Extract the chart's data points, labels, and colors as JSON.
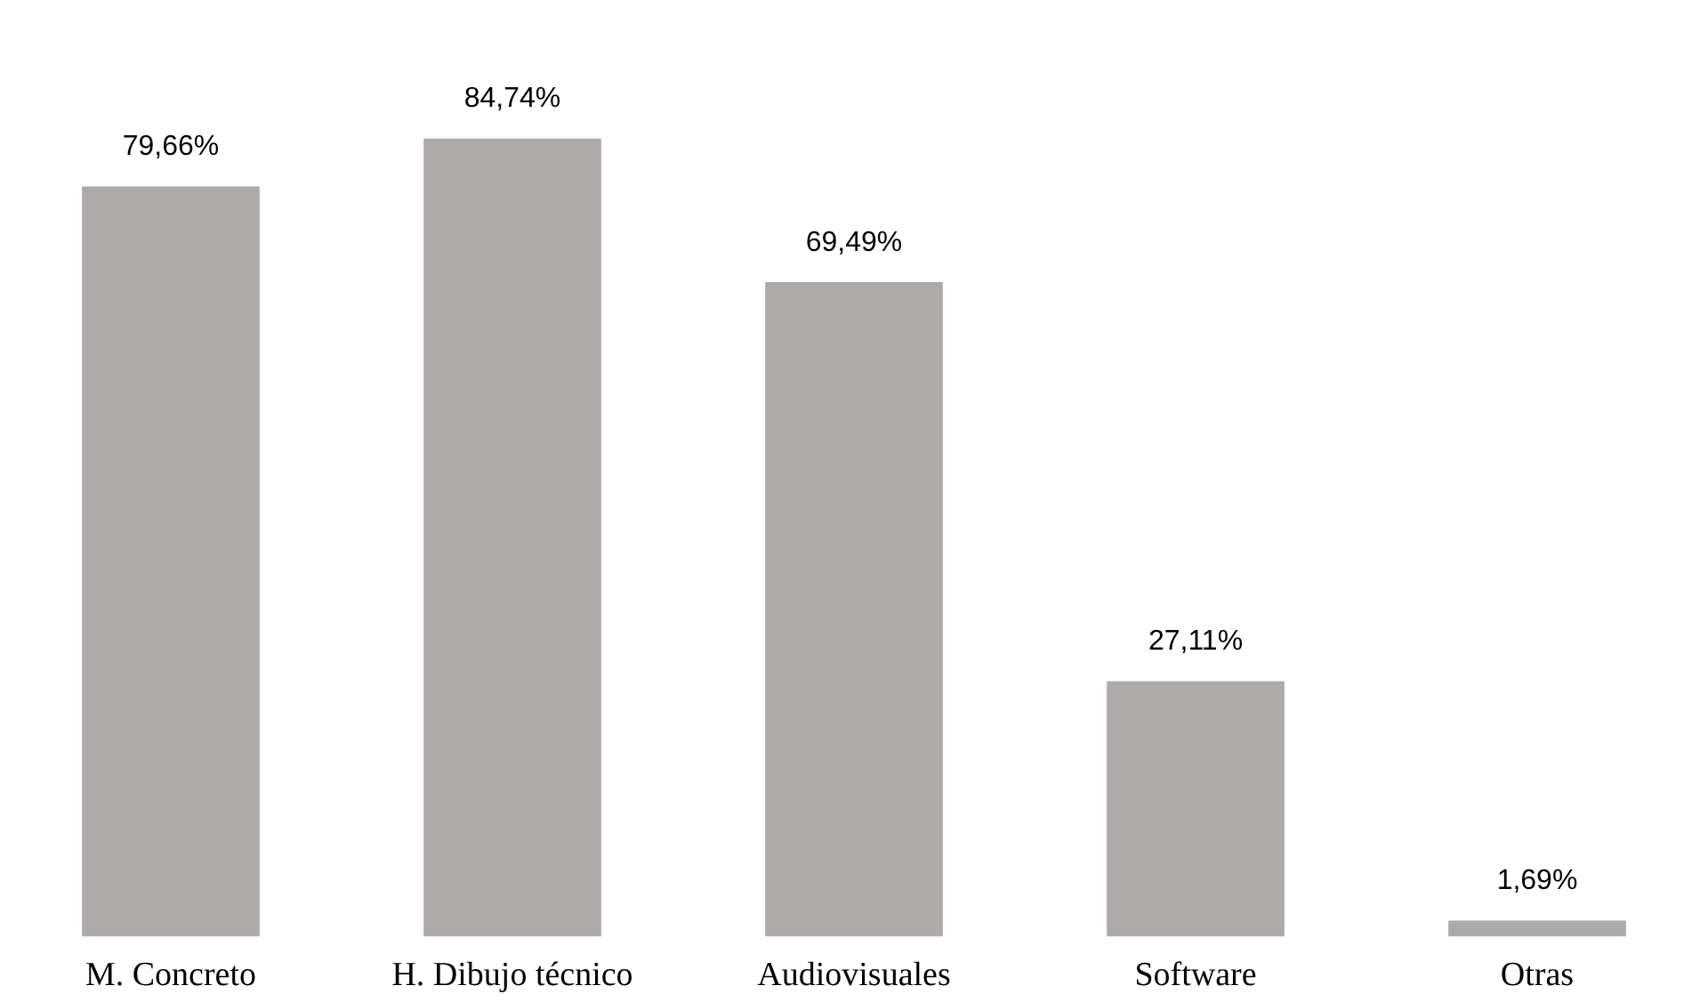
{
  "chart_data": {
    "type": "bar",
    "categories": [
      "M. Concreto",
      "H. Dibujo técnico",
      "Audiovisuales",
      "Software",
      "Otras"
    ],
    "values": [
      79.66,
      84.74,
      69.49,
      27.11,
      1.69
    ],
    "value_labels": [
      "79,66%",
      "84,74%",
      "69,49%",
      "27,11%",
      "1,69%"
    ],
    "color": "#aeaaaa",
    "tick_labels": "x",
    "grid": false,
    "legend": false
  }
}
